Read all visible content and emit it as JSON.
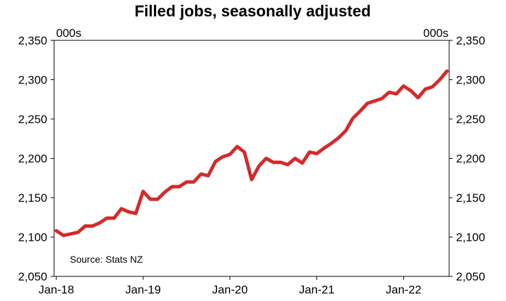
{
  "chart_data": {
    "type": "line",
    "title": "Filled jobs, seasonally adjusted",
    "unit_left": "000s",
    "unit_right": "000s",
    "source": "Source: Stats NZ",
    "ylim": [
      2050,
      2350
    ],
    "y_ticks": [
      2050,
      2100,
      2150,
      2200,
      2250,
      2300,
      2350
    ],
    "y_tick_labels": [
      "2,050",
      "2,100",
      "2,150",
      "2,200",
      "2,250",
      "2,300",
      "2,350"
    ],
    "x_tick_labels": [
      "Jan-18",
      "Jan-19",
      "Jan-20",
      "Jan-21",
      "Jan-22"
    ],
    "x_tick_months": [
      "2018-01",
      "2019-01",
      "2020-01",
      "2021-01",
      "2022-01"
    ],
    "x_range": [
      "2018-01",
      "2022-07"
    ],
    "line_color": "#d22b2b",
    "series": [
      {
        "x": [
          "2018-01",
          "2018-02",
          "2018-03",
          "2018-04",
          "2018-05",
          "2018-06",
          "2018-07",
          "2018-08",
          "2018-09",
          "2018-10",
          "2018-11",
          "2018-12",
          "2019-01",
          "2019-02",
          "2019-03",
          "2019-04",
          "2019-05",
          "2019-06",
          "2019-07",
          "2019-08",
          "2019-09",
          "2019-10",
          "2019-11",
          "2019-12",
          "2020-01",
          "2020-02",
          "2020-03",
          "2020-04",
          "2020-05",
          "2020-06",
          "2020-07",
          "2020-08",
          "2020-09",
          "2020-10",
          "2020-11",
          "2020-12",
          "2021-01",
          "2021-02",
          "2021-03",
          "2021-04",
          "2021-05",
          "2021-06",
          "2021-07",
          "2021-08",
          "2021-09",
          "2021-10",
          "2021-11",
          "2021-12",
          "2022-01",
          "2022-02",
          "2022-03",
          "2022-04",
          "2022-05",
          "2022-06",
          "2022-07"
        ],
        "values": [
          2108,
          2102,
          2104,
          2106,
          2114,
          2114,
          2118,
          2124,
          2124,
          2136,
          2132,
          2130,
          2158,
          2148,
          2148,
          2157,
          2164,
          2164,
          2170,
          2170,
          2180,
          2178,
          2196,
          2202,
          2205,
          2215,
          2208,
          2173,
          2190,
          2200,
          2195,
          2195,
          2192,
          2200,
          2194,
          2208,
          2206,
          2213,
          2219,
          2226,
          2235,
          2251,
          2260,
          2270,
          2273,
          2276,
          2284,
          2282,
          2292,
          2286,
          2277,
          2288,
          2291,
          2300,
          2311
        ]
      }
    ]
  }
}
